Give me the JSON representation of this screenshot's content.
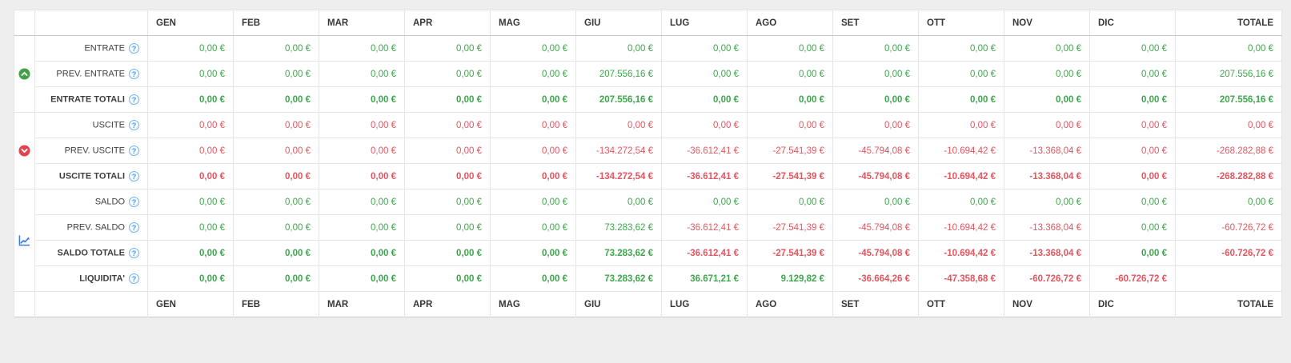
{
  "colors": {
    "positive_green": "#3fa64d",
    "negative_red": "#e2565f",
    "help_icon_blue": "#4d9ef0",
    "group_up_green": "#43a047",
    "group_down_red": "#e2434f",
    "chart_icon_blue": "#3b7ae0",
    "header_text": "#35383b",
    "page_background": "#eeeeef"
  },
  "table": {
    "months": [
      "GEN",
      "FEB",
      "MAR",
      "APR",
      "MAG",
      "GIU",
      "LUG",
      "AGO",
      "SET",
      "OTT",
      "NOV",
      "DIC"
    ],
    "totale_label": "TOTALE",
    "groups": [
      {
        "icon": "chevron-up-circle-icon",
        "rows": [
          {
            "label": "ENTRATE",
            "bold": false,
            "values": [
              "0,00 €",
              "0,00 €",
              "0,00 €",
              "0,00 €",
              "0,00 €",
              "0,00 €",
              "0,00 €",
              "0,00 €",
              "0,00 €",
              "0,00 €",
              "0,00 €",
              "0,00 €",
              "0,00 €"
            ],
            "colors": [
              "g",
              "g",
              "g",
              "g",
              "g",
              "g",
              "g",
              "g",
              "g",
              "g",
              "g",
              "g",
              "g"
            ]
          },
          {
            "label": "PREV. ENTRATE",
            "bold": false,
            "values": [
              "0,00 €",
              "0,00 €",
              "0,00 €",
              "0,00 €",
              "0,00 €",
              "207.556,16 €",
              "0,00 €",
              "0,00 €",
              "0,00 €",
              "0,00 €",
              "0,00 €",
              "0,00 €",
              "207.556,16 €"
            ],
            "colors": [
              "g",
              "g",
              "g",
              "g",
              "g",
              "g",
              "g",
              "g",
              "g",
              "g",
              "g",
              "g",
              "g"
            ]
          },
          {
            "label": "ENTRATE TOTALI",
            "bold": true,
            "values": [
              "0,00 €",
              "0,00 €",
              "0,00 €",
              "0,00 €",
              "0,00 €",
              "207.556,16 €",
              "0,00 €",
              "0,00 €",
              "0,00 €",
              "0,00 €",
              "0,00 €",
              "0,00 €",
              "207.556,16 €"
            ],
            "colors": [
              "g",
              "g",
              "g",
              "g",
              "g",
              "g",
              "g",
              "g",
              "g",
              "g",
              "g",
              "g",
              "g"
            ]
          }
        ]
      },
      {
        "icon": "chevron-down-circle-icon",
        "rows": [
          {
            "label": "USCITE",
            "bold": false,
            "values": [
              "0,00 €",
              "0,00 €",
              "0,00 €",
              "0,00 €",
              "0,00 €",
              "0,00 €",
              "0,00 €",
              "0,00 €",
              "0,00 €",
              "0,00 €",
              "0,00 €",
              "0,00 €",
              "0,00 €"
            ],
            "colors": [
              "r",
              "r",
              "r",
              "r",
              "r",
              "r",
              "r",
              "r",
              "r",
              "r",
              "r",
              "r",
              "r"
            ]
          },
          {
            "label": "PREV. USCITE",
            "bold": false,
            "values": [
              "0,00 €",
              "0,00 €",
              "0,00 €",
              "0,00 €",
              "0,00 €",
              "-134.272,54 €",
              "-36.612,41 €",
              "-27.541,39 €",
              "-45.794,08 €",
              "-10.694,42 €",
              "-13.368,04 €",
              "0,00 €",
              "-268.282,88 €"
            ],
            "colors": [
              "r",
              "r",
              "r",
              "r",
              "r",
              "r",
              "r",
              "r",
              "r",
              "r",
              "r",
              "r",
              "r"
            ]
          },
          {
            "label": "USCITE TOTALI",
            "bold": true,
            "values": [
              "0,00 €",
              "0,00 €",
              "0,00 €",
              "0,00 €",
              "0,00 €",
              "-134.272,54 €",
              "-36.612,41 €",
              "-27.541,39 €",
              "-45.794,08 €",
              "-10.694,42 €",
              "-13.368,04 €",
              "0,00 €",
              "-268.282,88 €"
            ],
            "colors": [
              "r",
              "r",
              "r",
              "r",
              "r",
              "r",
              "r",
              "r",
              "r",
              "r",
              "r",
              "r",
              "r"
            ]
          }
        ]
      },
      {
        "icon": "line-chart-icon",
        "rows": [
          {
            "label": "SALDO",
            "bold": false,
            "values": [
              "0,00 €",
              "0,00 €",
              "0,00 €",
              "0,00 €",
              "0,00 €",
              "0,00 €",
              "0,00 €",
              "0,00 €",
              "0,00 €",
              "0,00 €",
              "0,00 €",
              "0,00 €",
              "0,00 €"
            ],
            "colors": [
              "g",
              "g",
              "g",
              "g",
              "g",
              "g",
              "g",
              "g",
              "g",
              "g",
              "g",
              "g",
              "g"
            ]
          },
          {
            "label": "PREV. SALDO",
            "bold": false,
            "values": [
              "0,00 €",
              "0,00 €",
              "0,00 €",
              "0,00 €",
              "0,00 €",
              "73.283,62 €",
              "-36.612,41 €",
              "-27.541,39 €",
              "-45.794,08 €",
              "-10.694,42 €",
              "-13.368,04 €",
              "0,00 €",
              "-60.726,72 €"
            ],
            "colors": [
              "g",
              "g",
              "g",
              "g",
              "g",
              "g",
              "r",
              "r",
              "r",
              "r",
              "r",
              "g",
              "r"
            ]
          },
          {
            "label": "SALDO TOTALE",
            "bold": true,
            "values": [
              "0,00 €",
              "0,00 €",
              "0,00 €",
              "0,00 €",
              "0,00 €",
              "73.283,62 €",
              "-36.612,41 €",
              "-27.541,39 €",
              "-45.794,08 €",
              "-10.694,42 €",
              "-13.368,04 €",
              "0,00 €",
              "-60.726,72 €"
            ],
            "colors": [
              "g",
              "g",
              "g",
              "g",
              "g",
              "g",
              "r",
              "r",
              "r",
              "r",
              "r",
              "g",
              "r"
            ]
          },
          {
            "label": "LIQUIDITA'",
            "bold": true,
            "values": [
              "0,00 €",
              "0,00 €",
              "0,00 €",
              "0,00 €",
              "0,00 €",
              "73.283,62 €",
              "36.671,21 €",
              "9.129,82 €",
              "-36.664,26 €",
              "-47.358,68 €",
              "-60.726,72 €",
              "-60.726,72 €",
              ""
            ],
            "colors": [
              "g",
              "g",
              "g",
              "g",
              "g",
              "g",
              "g",
              "g",
              "r",
              "r",
              "r",
              "r",
              ""
            ]
          }
        ]
      }
    ],
    "help_icon": "?"
  }
}
